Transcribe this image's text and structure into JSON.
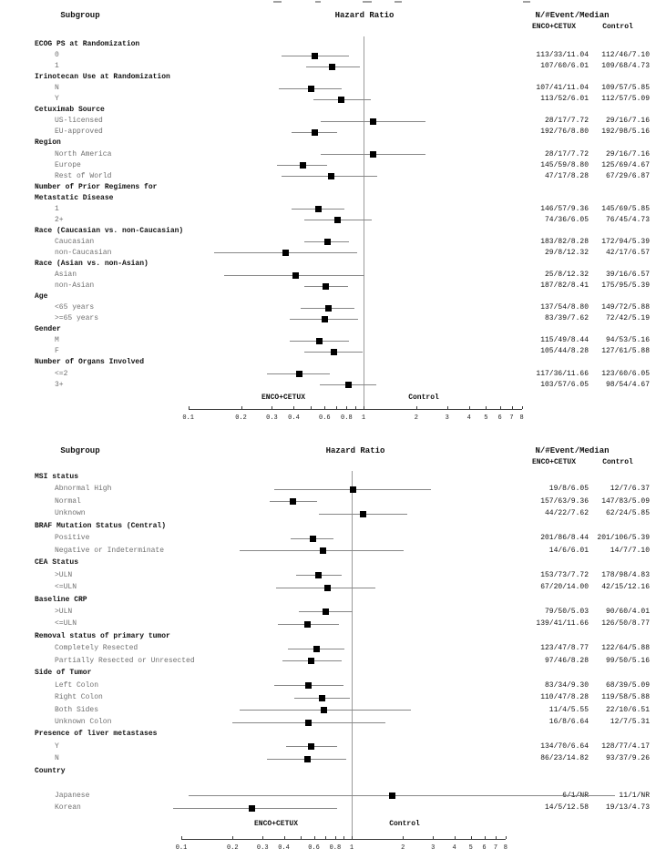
{
  "figure_colors": {
    "marker": "#000000",
    "ci_line": "#878787",
    "reference_line": "#9a9a9a",
    "axis": "#3a3a3a",
    "item_label": "#707070"
  },
  "chart_data": [
    {
      "type": "forest",
      "panel": 1,
      "title": "Hazard Ratio",
      "col_subgroup": "Subgroup",
      "col_values": "N/#Event/Median",
      "arm1_label": "ENCO+CETUX",
      "arm2_label": "Control",
      "footer_left": "ENCO+CETUX",
      "footer_right": "Control",
      "x_axis": {
        "scale": "log",
        "range": [
          0.1,
          8
        ],
        "reference_line": 1,
        "ticks": [
          0.1,
          0.2,
          0.3,
          0.4,
          0.5,
          0.6,
          0.7,
          0.8,
          0.9,
          1,
          2,
          3,
          4,
          5,
          6,
          7,
          8
        ],
        "labeled_ticks": [
          0.1,
          0.2,
          0.3,
          0.4,
          0.6,
          0.8,
          1,
          2,
          3,
          4,
          5,
          6,
          7,
          8
        ]
      },
      "rows": [
        {
          "type": "header",
          "label": "ECOG PS at Randomization"
        },
        {
          "type": "item",
          "label": "0",
          "hr": 0.53,
          "ci_low": 0.34,
          "ci_high": 0.83,
          "arm1": "113/33/11.04",
          "arm2": "112/46/7.10"
        },
        {
          "type": "item",
          "label": "1",
          "hr": 0.66,
          "ci_low": 0.47,
          "ci_high": 0.95,
          "arm1": "107/60/6.01",
          "arm2": "109/68/4.73"
        },
        {
          "type": "header",
          "label": "Irinotecan Use at Randomization"
        },
        {
          "type": "item",
          "label": "N",
          "hr": 0.5,
          "ci_low": 0.33,
          "ci_high": 0.75,
          "arm1": "107/41/11.04",
          "arm2": "109/57/5.85"
        },
        {
          "type": "item",
          "label": "Y",
          "hr": 0.75,
          "ci_low": 0.52,
          "ci_high": 1.1,
          "arm1": "113/52/6.01",
          "arm2": "112/57/5.09"
        },
        {
          "type": "header",
          "label": "Cetuximab Source"
        },
        {
          "type": "item",
          "label": "US-licensed",
          "hr": 1.14,
          "ci_low": 0.57,
          "ci_high": 2.27,
          "arm1": "28/17/7.72",
          "arm2": "29/16/7.16"
        },
        {
          "type": "item",
          "label": "EU-approved",
          "hr": 0.53,
          "ci_low": 0.39,
          "ci_high": 0.71,
          "arm1": "192/76/8.80",
          "arm2": "192/98/5.16"
        },
        {
          "type": "header",
          "label": "Region"
        },
        {
          "type": "item",
          "label": "North America",
          "hr": 1.14,
          "ci_low": 0.57,
          "ci_high": 2.27,
          "arm1": "28/17/7.72",
          "arm2": "29/16/7.16"
        },
        {
          "type": "item",
          "label": "Europe",
          "hr": 0.45,
          "ci_low": 0.32,
          "ci_high": 0.62,
          "arm1": "145/59/8.80",
          "arm2": "125/69/4.67"
        },
        {
          "type": "item",
          "label": "Rest of World",
          "hr": 0.65,
          "ci_low": 0.34,
          "ci_high": 1.19,
          "arm1": "47/17/8.28",
          "arm2": "67/29/6.87"
        },
        {
          "type": "header",
          "label": "Number of Prior Regimens for"
        },
        {
          "type": "header",
          "label": "Metastatic Disease"
        },
        {
          "type": "item",
          "label": "1",
          "hr": 0.55,
          "ci_low": 0.39,
          "ci_high": 0.78,
          "arm1": "146/57/9.36",
          "arm2": "145/69/5.85"
        },
        {
          "type": "item",
          "label": "2+",
          "hr": 0.71,
          "ci_low": 0.46,
          "ci_high": 1.11,
          "arm1": "74/36/6.05",
          "arm2": "76/45/4.73"
        },
        {
          "type": "header",
          "label": "Race (Caucasian vs. non-Caucasian)"
        },
        {
          "type": "item",
          "label": "Caucasian",
          "hr": 0.62,
          "ci_low": 0.46,
          "ci_high": 0.83,
          "arm1": "183/82/8.28",
          "arm2": "172/94/5.39"
        },
        {
          "type": "item",
          "label": "non-Caucasian",
          "hr": 0.36,
          "ci_low": 0.14,
          "ci_high": 0.92,
          "arm1": "29/8/12.32",
          "arm2": "42/17/6.57"
        },
        {
          "type": "header",
          "label": "Race (Asian vs. non-Asian)"
        },
        {
          "type": "item",
          "label": "Asian",
          "hr": 0.41,
          "ci_low": 0.16,
          "ci_high": 1.01,
          "arm1": "25/8/12.32",
          "arm2": "39/16/6.57"
        },
        {
          "type": "item",
          "label": "non-Asian",
          "hr": 0.61,
          "ci_low": 0.46,
          "ci_high": 0.82,
          "arm1": "187/82/8.41",
          "arm2": "175/95/5.39"
        },
        {
          "type": "header",
          "label": "Age"
        },
        {
          "type": "item",
          "label": "<65 years",
          "hr": 0.63,
          "ci_low": 0.44,
          "ci_high": 0.89,
          "arm1": "137/54/8.80",
          "arm2": "149/72/5.88"
        },
        {
          "type": "item",
          "label": ">=65 years",
          "hr": 0.6,
          "ci_low": 0.38,
          "ci_high": 0.93,
          "arm1": "83/39/7.62",
          "arm2": "72/42/5.19"
        },
        {
          "type": "header",
          "label": "Gender"
        },
        {
          "type": "item",
          "label": "M",
          "hr": 0.56,
          "ci_low": 0.38,
          "ci_high": 0.83,
          "arm1": "115/49/8.44",
          "arm2": "94/53/5.16"
        },
        {
          "type": "item",
          "label": "F",
          "hr": 0.68,
          "ci_low": 0.46,
          "ci_high": 0.99,
          "arm1": "105/44/8.28",
          "arm2": "127/61/5.88"
        },
        {
          "type": "header",
          "label": "Number of Organs Involved"
        },
        {
          "type": "item",
          "label": "<=2",
          "hr": 0.43,
          "ci_low": 0.28,
          "ci_high": 0.64,
          "arm1": "117/36/11.66",
          "arm2": "123/60/6.05"
        },
        {
          "type": "item",
          "label": "3+",
          "hr": 0.82,
          "ci_low": 0.56,
          "ci_high": 1.18,
          "arm1": "103/57/6.05",
          "arm2": "98/54/4.67"
        }
      ]
    },
    {
      "type": "forest",
      "panel": 2,
      "title": "Hazard Ratio",
      "col_subgroup": "Subgroup",
      "col_values": "N/#Event/Median",
      "arm1_label": "ENCO+CETUX",
      "arm2_label": "Control",
      "footer_left": "ENCO+CETUX",
      "footer_right": "Control",
      "x_axis": {
        "scale": "log",
        "range": [
          0.1,
          8
        ],
        "reference_line": 1,
        "ticks": [
          0.1,
          0.2,
          0.3,
          0.4,
          0.5,
          0.6,
          0.7,
          0.8,
          0.9,
          1,
          2,
          3,
          4,
          5,
          6,
          7,
          8
        ],
        "labeled_ticks": [
          0.1,
          0.2,
          0.3,
          0.4,
          0.6,
          0.8,
          1,
          2,
          3,
          4,
          5,
          6,
          7,
          8
        ]
      },
      "rows": [
        {
          "type": "header",
          "label": "MSI status"
        },
        {
          "type": "item",
          "label": "Abnormal High",
          "hr": 1.02,
          "ci_low": 0.35,
          "ci_high": 2.93,
          "arm1": "19/8/6.05",
          "arm2": "12/7/6.37"
        },
        {
          "type": "item",
          "label": "Normal",
          "hr": 0.45,
          "ci_low": 0.33,
          "ci_high": 0.63,
          "arm1": "157/63/9.36",
          "arm2": "147/83/5.09"
        },
        {
          "type": "item",
          "label": "Unknown",
          "hr": 1.16,
          "ci_low": 0.64,
          "ci_high": 2.11,
          "arm1": "44/22/7.62",
          "arm2": "62/24/5.85"
        },
        {
          "type": "header",
          "label": "BRAF Mutation Status (Central)"
        },
        {
          "type": "item",
          "label": "Positive",
          "hr": 0.59,
          "ci_low": 0.44,
          "ci_high": 0.78,
          "arm1": "201/86/8.44",
          "arm2": "201/106/5.39"
        },
        {
          "type": "item",
          "label": "Negative or Indeterminate",
          "hr": 0.68,
          "ci_low": 0.22,
          "ci_high": 2.03,
          "arm1": "14/6/6.01",
          "arm2": "14/7/7.10"
        },
        {
          "type": "header",
          "label": "CEA Status"
        },
        {
          "type": "item",
          "label": ">ULN",
          "hr": 0.64,
          "ci_low": 0.47,
          "ci_high": 0.87,
          "arm1": "153/73/7.72",
          "arm2": "178/98/4.83"
        },
        {
          "type": "item",
          "label": "<=ULN",
          "hr": 0.72,
          "ci_low": 0.36,
          "ci_high": 1.37,
          "arm1": "67/20/14.00",
          "arm2": "42/15/12.16"
        },
        {
          "type": "header",
          "label": "Baseline CRP"
        },
        {
          "type": "item",
          "label": ">ULN",
          "hr": 0.7,
          "ci_low": 0.49,
          "ci_high": 1.01,
          "arm1": "79/50/5.03",
          "arm2": "90/60/4.01"
        },
        {
          "type": "item",
          "label": "<=ULN",
          "hr": 0.55,
          "ci_low": 0.37,
          "ci_high": 0.84,
          "arm1": "139/41/11.66",
          "arm2": "126/50/8.77"
        },
        {
          "type": "header",
          "label": "Removal status of primary tumor"
        },
        {
          "type": "item",
          "label": "Completely Resected",
          "hr": 0.62,
          "ci_low": 0.42,
          "ci_high": 0.91,
          "arm1": "123/47/8.77",
          "arm2": "122/64/5.88"
        },
        {
          "type": "item",
          "label": "Partially Resected or Unresected",
          "hr": 0.58,
          "ci_low": 0.39,
          "ci_high": 0.87,
          "arm1": "97/46/8.28",
          "arm2": "99/50/5.16"
        },
        {
          "type": "header",
          "label": "Side of Tumor"
        },
        {
          "type": "item",
          "label": "Left Colon",
          "hr": 0.56,
          "ci_low": 0.35,
          "ci_high": 0.9,
          "arm1": "83/34/9.30",
          "arm2": "68/39/5.09"
        },
        {
          "type": "item",
          "label": "Right Colon",
          "hr": 0.67,
          "ci_low": 0.46,
          "ci_high": 0.98,
          "arm1": "110/47/8.28",
          "arm2": "119/58/5.88"
        },
        {
          "type": "item",
          "label": "Both Sides",
          "hr": 0.69,
          "ci_low": 0.22,
          "ci_high": 2.22,
          "arm1": "11/4/5.55",
          "arm2": "22/10/6.51"
        },
        {
          "type": "item",
          "label": "Unknown Colon",
          "hr": 0.56,
          "ci_low": 0.2,
          "ci_high": 1.57,
          "arm1": "16/8/6.64",
          "arm2": "12/7/5.31"
        },
        {
          "type": "header",
          "label": "Presence of liver metastases"
        },
        {
          "type": "item",
          "label": "Y",
          "hr": 0.58,
          "ci_low": 0.41,
          "ci_high": 0.82,
          "arm1": "134/70/6.64",
          "arm2": "128/77/4.17"
        },
        {
          "type": "item",
          "label": "N",
          "hr": 0.55,
          "ci_low": 0.32,
          "ci_high": 0.93,
          "arm1": "86/23/14.82",
          "arm2": "93/37/9.26"
        },
        {
          "type": "header",
          "label": "Country"
        },
        {
          "type": "spacer"
        },
        {
          "type": "item",
          "label": "Japanese",
          "hr": 1.72,
          "ci_low": 0.11,
          "ci_high": 35,
          "ci_high_offscale": true,
          "arm1": "6/1/NR",
          "arm2": "11/1/NR"
        },
        {
          "type": "item",
          "label": "Korean",
          "hr": 0.26,
          "ci_low": 0.09,
          "ci_high": 0.82,
          "arm1": "14/5/12.58",
          "arm2": "19/13/4.73"
        }
      ]
    }
  ]
}
